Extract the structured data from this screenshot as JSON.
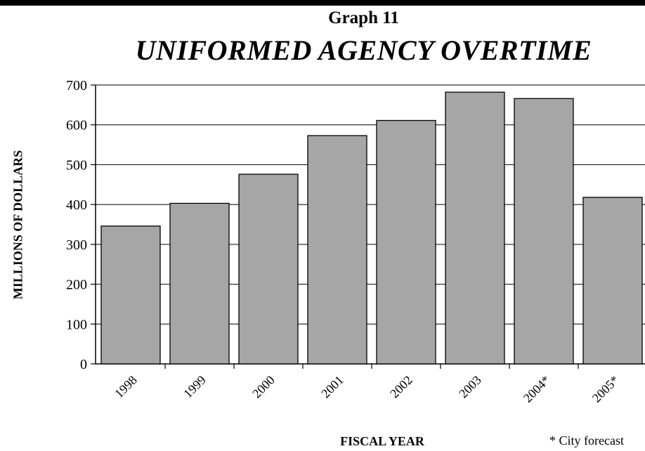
{
  "header": {
    "title": "Graph 11",
    "subtitle": "UNIFORMED AGENCY OVERTIME"
  },
  "axes": {
    "ylabel": "MILLIONS OF DOLLARS",
    "xlabel": "FISCAL YEAR"
  },
  "footnote": "* City forecast",
  "colors": {
    "bar_fill": "#a6a6a6",
    "bar_stroke": "#000000",
    "grid": "#000000"
  },
  "chart_data": {
    "type": "bar",
    "title": "UNIFORMED AGENCY OVERTIME",
    "xlabel": "FISCAL YEAR",
    "ylabel": "MILLIONS OF DOLLARS",
    "categories": [
      "1998",
      "1999",
      "2000",
      "2001",
      "2002",
      "2003",
      "2004*",
      "2005*"
    ],
    "values": [
      346,
      403,
      476,
      573,
      611,
      682,
      666,
      418
    ],
    "ylim": [
      0,
      700
    ],
    "yticks": [
      0,
      100,
      200,
      300,
      400,
      500,
      600,
      700
    ],
    "grid": true,
    "legend": "none"
  }
}
